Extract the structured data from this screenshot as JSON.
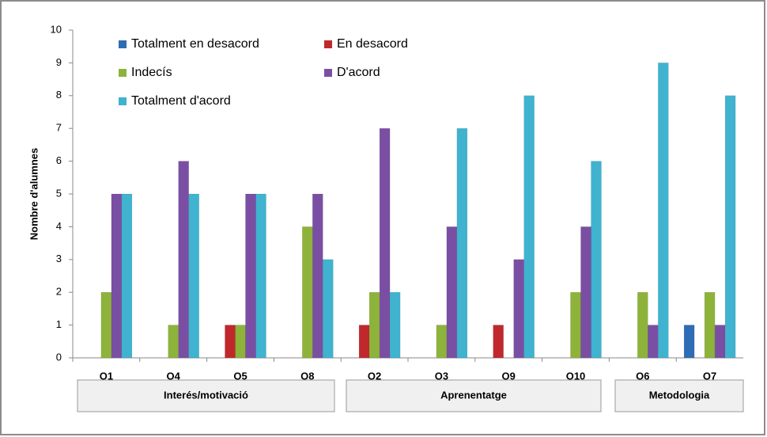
{
  "chart_data": {
    "type": "bar",
    "y_label": "Nombre d'alumnes",
    "categories": [
      "Q1",
      "Q4",
      "Q5",
      "Q8",
      "Q2",
      "Q3",
      "Q9",
      "Q10",
      "Q6",
      "Q7"
    ],
    "groups": [
      "Interés/motivació",
      "Aprenentatge",
      "Metodologia"
    ],
    "series": [
      {
        "name": "Totalment en desacord",
        "color": "#2f6cb6",
        "values": [
          0,
          0,
          0,
          0,
          0,
          0,
          0,
          0,
          0,
          1
        ]
      },
      {
        "name": "En desacord",
        "color": "#c0282c",
        "values": [
          0,
          0,
          1,
          0,
          1,
          0,
          1,
          0,
          0,
          0
        ]
      },
      {
        "name": "Indecís",
        "color": "#8db33a",
        "values": [
          2,
          1,
          1,
          4,
          2,
          1,
          0,
          2,
          2,
          2
        ]
      },
      {
        "name": "D'acord",
        "color": "#7a4fa3",
        "values": [
          5,
          6,
          5,
          5,
          7,
          4,
          3,
          4,
          1,
          1
        ]
      },
      {
        "name": "Totalment d'acord",
        "color": "#3fb3cf",
        "values": [
          5,
          5,
          5,
          3,
          2,
          7,
          8,
          6,
          9,
          8
        ]
      }
    ],
    "ylim": [
      0,
      10
    ],
    "yticks": [
      0,
      1,
      2,
      3,
      4,
      5,
      6,
      7,
      8,
      9,
      10
    ],
    "grid": false,
    "legend": "top-left"
  }
}
